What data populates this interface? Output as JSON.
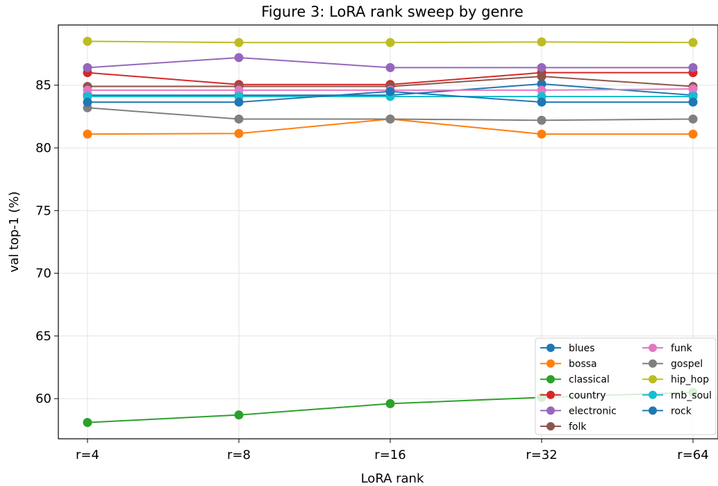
{
  "chart_data": {
    "type": "line",
    "title": "Figure 3: LoRA rank sweep by genre",
    "xlabel": "LoRA rank",
    "ylabel": "val top-1 (%)",
    "categories": [
      "r=4",
      "r=8",
      "r=16",
      "r=32",
      "r=64"
    ],
    "ylim": [
      56.8,
      89.8
    ],
    "yticks": [
      60,
      65,
      70,
      75,
      80,
      85
    ],
    "grid": true,
    "legend_position": "bottom-right",
    "series": [
      {
        "name": "blues",
        "color": "#1f77b4",
        "values": [
          84.2,
          84.2,
          84.2,
          85.1,
          84.2
        ]
      },
      {
        "name": "bossa",
        "color": "#ff7f0e",
        "values": [
          81.1,
          81.15,
          82.3,
          81.1,
          81.1
        ]
      },
      {
        "name": "classical",
        "color": "#2ca02c",
        "values": [
          58.1,
          58.7,
          59.6,
          60.1,
          60.5
        ]
      },
      {
        "name": "country",
        "color": "#d62728",
        "values": [
          86.0,
          85.05,
          85.05,
          86.0,
          86.0
        ]
      },
      {
        "name": "electronic",
        "color": "#9467bd",
        "values": [
          86.4,
          87.2,
          86.4,
          86.4,
          86.4
        ]
      },
      {
        "name": "folk",
        "color": "#8c564b",
        "values": [
          84.9,
          84.9,
          84.9,
          85.7,
          84.9
        ]
      },
      {
        "name": "funk",
        "color": "#e377c2",
        "values": [
          84.6,
          84.6,
          84.6,
          84.6,
          84.7
        ]
      },
      {
        "name": "gospel",
        "color": "#7f7f7f",
        "values": [
          83.2,
          82.3,
          82.3,
          82.2,
          82.3
        ]
      },
      {
        "name": "hip_hop",
        "color": "#bcbd22",
        "values": [
          88.5,
          88.4,
          88.4,
          88.45,
          88.4
        ]
      },
      {
        "name": "rnb_soul",
        "color": "#17becf",
        "values": [
          84.1,
          84.1,
          84.1,
          84.1,
          84.1
        ]
      },
      {
        "name": "rock",
        "color": "#1f77b4",
        "values": [
          83.65,
          83.65,
          84.5,
          83.65,
          83.65
        ]
      }
    ]
  }
}
